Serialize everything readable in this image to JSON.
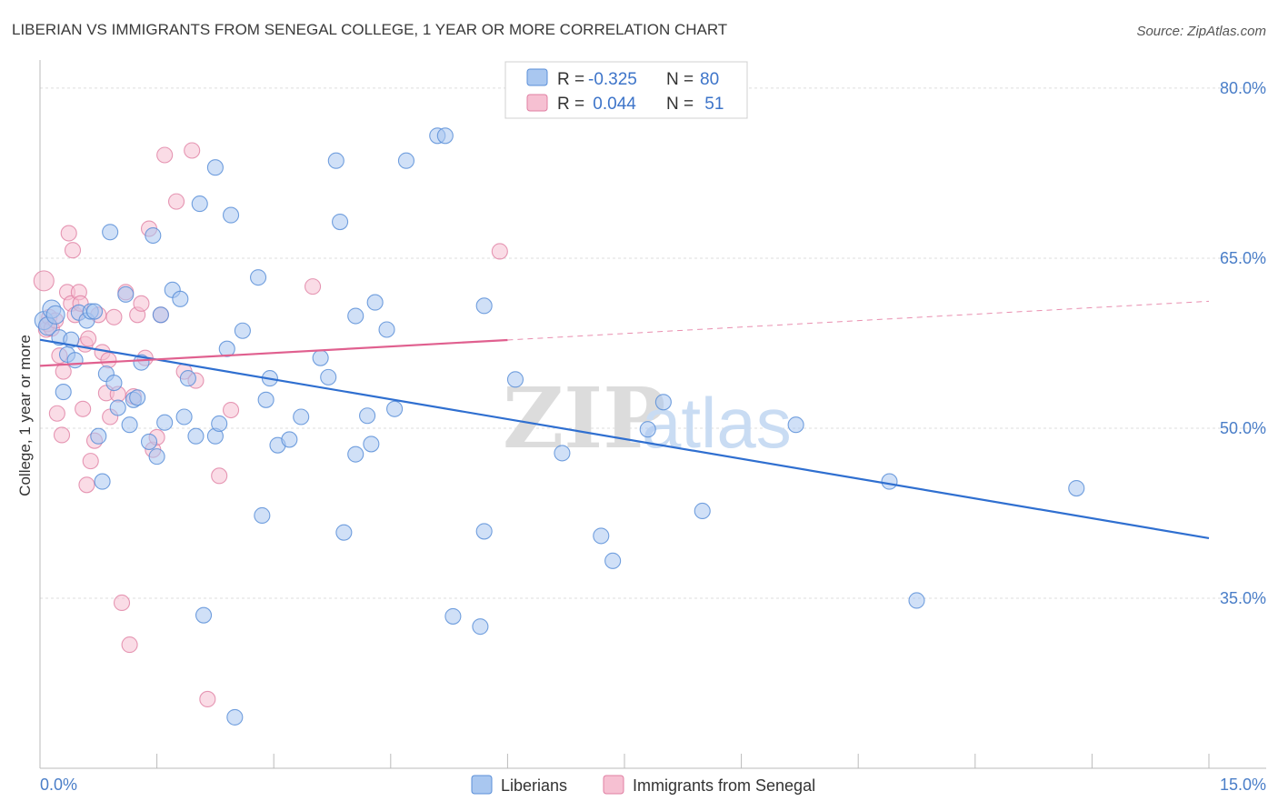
{
  "title": "LIBERIAN VS IMMIGRANTS FROM SENEGAL COLLEGE, 1 YEAR OR MORE CORRELATION CHART",
  "source": "Source: ZipAtlas.com",
  "watermark": {
    "zip": "ZIP",
    "atlas": "atlas"
  },
  "legend_box": {
    "rows": [
      {
        "r_label": "R =",
        "r_value": "-0.325",
        "n_label": "N =",
        "n_value": "80"
      },
      {
        "r_label": "R =",
        "r_value": " 0.044",
        "n_label": "N =",
        "n_value": " 51"
      }
    ]
  },
  "colors": {
    "blue_fill": "#a9c7f0",
    "blue_stroke": "#5b8fd8",
    "blue_line": "#2f6fd0",
    "pink_fill": "#f6c0d2",
    "pink_stroke": "#e07fa3",
    "pink_line": "#e0608f",
    "grid": "#dddddd",
    "tick_label": "#4a7ec8"
  },
  "chart_data": {
    "type": "scatter",
    "title": "LIBERIAN VS IMMIGRANTS FROM SENEGAL COLLEGE, 1 YEAR OR MORE CORRELATION CHART",
    "xlabel": "",
    "ylabel": "College, 1 year or more",
    "xlim": [
      0,
      15
    ],
    "ylim": [
      20,
      82
    ],
    "x_tick_labels": [
      "0.0%",
      "15.0%"
    ],
    "y_ticks": [
      35,
      50,
      65,
      80
    ],
    "y_tick_labels": [
      "35.0%",
      "50.0%",
      "65.0%",
      "80.0%"
    ],
    "series": [
      {
        "name": "Liberians",
        "color": "#5b8fd8",
        "r": -0.325,
        "n": 80,
        "trend": {
          "x0": 0,
          "y0": 57.8,
          "x1": 15,
          "y1": 40.3
        },
        "points": [
          [
            0.05,
            59.5
          ],
          [
            0.1,
            59
          ],
          [
            0.15,
            60.5
          ],
          [
            0.2,
            60
          ],
          [
            0.25,
            58
          ],
          [
            0.3,
            53.2
          ],
          [
            0.35,
            56.5
          ],
          [
            0.4,
            57.8
          ],
          [
            0.45,
            56
          ],
          [
            0.5,
            60.2
          ],
          [
            0.6,
            59.5
          ],
          [
            0.65,
            60.3
          ],
          [
            0.7,
            60.3
          ],
          [
            0.75,
            49.3
          ],
          [
            0.8,
            45.3
          ],
          [
            0.85,
            54.8
          ],
          [
            0.9,
            67.3
          ],
          [
            0.95,
            54
          ],
          [
            1.0,
            51.8
          ],
          [
            1.1,
            61.8
          ],
          [
            1.15,
            50.3
          ],
          [
            1.2,
            52.5
          ],
          [
            1.25,
            52.7
          ],
          [
            1.3,
            55.8
          ],
          [
            1.4,
            48.8
          ],
          [
            1.45,
            67
          ],
          [
            1.5,
            47.5
          ],
          [
            1.55,
            60
          ],
          [
            1.6,
            50.5
          ],
          [
            1.7,
            62.2
          ],
          [
            1.8,
            61.4
          ],
          [
            1.85,
            51
          ],
          [
            1.9,
            54.4
          ],
          [
            2.0,
            49.3
          ],
          [
            2.05,
            69.8
          ],
          [
            2.1,
            33.5
          ],
          [
            2.25,
            73
          ],
          [
            2.25,
            49.3
          ],
          [
            2.3,
            50.4
          ],
          [
            2.4,
            57
          ],
          [
            2.45,
            68.8
          ],
          [
            2.5,
            24.5
          ],
          [
            2.6,
            58.6
          ],
          [
            2.8,
            63.3
          ],
          [
            2.85,
            42.3
          ],
          [
            2.9,
            52.5
          ],
          [
            2.95,
            54.4
          ],
          [
            3.05,
            48.5
          ],
          [
            3.2,
            49
          ],
          [
            3.35,
            51
          ],
          [
            3.6,
            56.2
          ],
          [
            3.7,
            54.5
          ],
          [
            3.8,
            73.6
          ],
          [
            3.85,
            68.2
          ],
          [
            3.9,
            40.8
          ],
          [
            4.05,
            59.9
          ],
          [
            4.05,
            47.7
          ],
          [
            4.2,
            51.1
          ],
          [
            4.25,
            48.6
          ],
          [
            4.3,
            61.1
          ],
          [
            4.45,
            58.7
          ],
          [
            4.55,
            51.7
          ],
          [
            4.7,
            73.6
          ],
          [
            5.1,
            75.8
          ],
          [
            5.2,
            75.8
          ],
          [
            5.3,
            33.4
          ],
          [
            5.65,
            32.5
          ],
          [
            5.7,
            40.9
          ],
          [
            5.7,
            60.8
          ],
          [
            6.1,
            54.3
          ],
          [
            6.7,
            47.8
          ],
          [
            7.2,
            40.5
          ],
          [
            7.35,
            38.3
          ],
          [
            7.8,
            49.9
          ],
          [
            8.0,
            52.3
          ],
          [
            8.5,
            42.7
          ],
          [
            9.7,
            50.3
          ],
          [
            10.9,
            45.3
          ],
          [
            11.25,
            34.8
          ],
          [
            13.3,
            44.7
          ]
        ]
      },
      {
        "name": "Immigrants from Senegal",
        "color": "#e07fa3",
        "r": 0.044,
        "n": 51,
        "trend": {
          "x0": 0,
          "y0": 55.5,
          "x1": 15,
          "y1": 61.2,
          "solid_until": 6.0
        },
        "points": [
          [
            0.05,
            63
          ],
          [
            0.08,
            58.7
          ],
          [
            0.1,
            59.2
          ],
          [
            0.12,
            59.8
          ],
          [
            0.15,
            58.8
          ],
          [
            0.2,
            59.5
          ],
          [
            0.22,
            51.3
          ],
          [
            0.25,
            56.4
          ],
          [
            0.28,
            49.4
          ],
          [
            0.3,
            55
          ],
          [
            0.35,
            62
          ],
          [
            0.37,
            67.2
          ],
          [
            0.4,
            61
          ],
          [
            0.42,
            65.7
          ],
          [
            0.45,
            60
          ],
          [
            0.5,
            62
          ],
          [
            0.52,
            61
          ],
          [
            0.55,
            51.7
          ],
          [
            0.58,
            57.4
          ],
          [
            0.6,
            45
          ],
          [
            0.62,
            57.9
          ],
          [
            0.65,
            47.1
          ],
          [
            0.7,
            48.9
          ],
          [
            0.75,
            60
          ],
          [
            0.8,
            56.7
          ],
          [
            0.85,
            53.1
          ],
          [
            0.88,
            56
          ],
          [
            0.9,
            51
          ],
          [
            0.95,
            59.8
          ],
          [
            1.0,
            53
          ],
          [
            1.05,
            34.6
          ],
          [
            1.1,
            62
          ],
          [
            1.15,
            30.9
          ],
          [
            1.2,
            52.8
          ],
          [
            1.25,
            60
          ],
          [
            1.3,
            61
          ],
          [
            1.35,
            56.2
          ],
          [
            1.4,
            67.6
          ],
          [
            1.45,
            48.1
          ],
          [
            1.5,
            49.2
          ],
          [
            1.55,
            60
          ],
          [
            1.6,
            74.1
          ],
          [
            1.75,
            70
          ],
          [
            1.85,
            55
          ],
          [
            1.95,
            74.5
          ],
          [
            2.0,
            54.2
          ],
          [
            2.15,
            26.1
          ],
          [
            2.3,
            45.8
          ],
          [
            2.45,
            51.6
          ],
          [
            3.5,
            62.5
          ],
          [
            5.9,
            65.6
          ]
        ]
      }
    ]
  },
  "bottom_legend": {
    "items": [
      "Liberians",
      "Immigrants from Senegal"
    ]
  }
}
